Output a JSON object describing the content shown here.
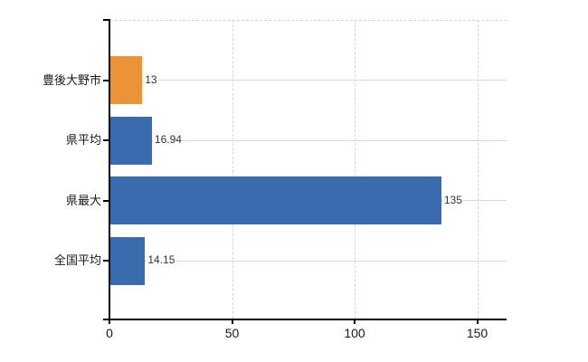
{
  "chart_data": {
    "type": "bar",
    "orientation": "horizontal",
    "title": "",
    "xlabel": "",
    "ylabel": "",
    "categories": [
      "豊後大野市",
      "県平均",
      "県最大",
      "全国平均"
    ],
    "values": [
      13,
      16.94,
      135,
      14.15
    ],
    "value_labels": [
      "13",
      "16.94",
      "135",
      "14.15"
    ],
    "series": [
      {
        "name": "value",
        "values": [
          13,
          16.94,
          135,
          14.15
        ]
      }
    ],
    "x_ticks": [
      0,
      50,
      100,
      150
    ],
    "x_tick_labels": [
      "0",
      "50",
      "100",
      "150"
    ],
    "xlim": [
      0,
      162
    ],
    "grid": true,
    "gridlines": {
      "horizontal": "solid, one per category row",
      "vertical": "dashed at 50/100/150, dashed top border"
    },
    "legend_position": "none",
    "bar_colors": [
      "#ec9339",
      "#3a6bae",
      "#3a6bae",
      "#3a6bae"
    ]
  },
  "colors": {
    "bar_orange": "#ec9339",
    "bar_blue": "#3a6bae",
    "h_gridline": "#d6dcd2",
    "v_gridline": "#d8d3d8",
    "axis": "#000000",
    "category_text": "#1a1a1a",
    "value_text": "#333333",
    "tick_text": "#1a1a1a",
    "background": "#ffffff"
  }
}
